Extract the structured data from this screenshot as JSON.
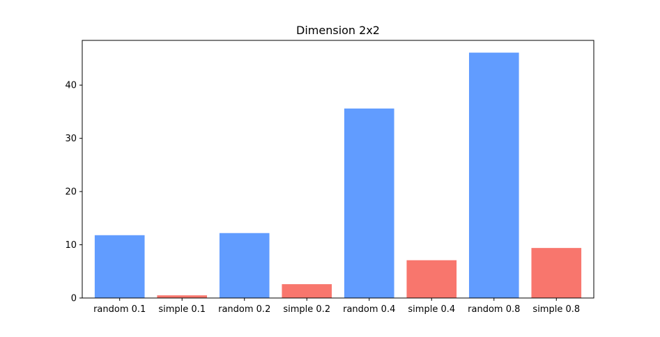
{
  "chart_data": {
    "type": "bar",
    "title": "Dimension 2x2",
    "xlabel": "",
    "ylabel": "",
    "categories": [
      "random 0.1",
      "simple 0.1",
      "random 0.2",
      "simple 0.2",
      "random 0.4",
      "simple 0.4",
      "random 0.8",
      "simple 0.8"
    ],
    "values": [
      11.8,
      0.5,
      12.2,
      2.6,
      35.6,
      7.1,
      46.1,
      9.4
    ],
    "bar_colors": [
      "#619cff",
      "#f8766d",
      "#619cff",
      "#f8766d",
      "#619cff",
      "#f8766d",
      "#619cff",
      "#f8766d"
    ],
    "y_ticks": [
      0,
      10,
      20,
      30,
      40
    ],
    "ylim": [
      0,
      48.4
    ],
    "grid": false,
    "legend": "none"
  }
}
